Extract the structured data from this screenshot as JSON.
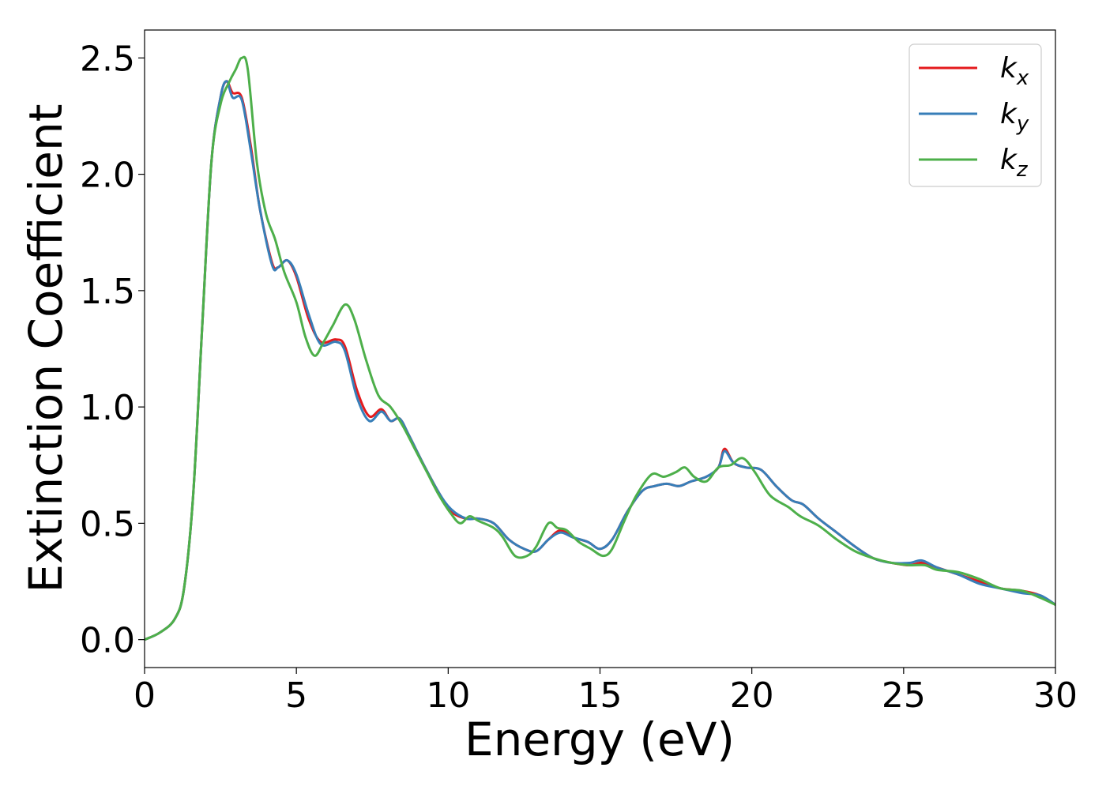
{
  "chart_data": {
    "type": "line",
    "title": "",
    "xlabel": "Energy (eV)",
    "ylabel": "Extinction Coefficient",
    "xlim": [
      0,
      30
    ],
    "ylim": [
      -0.12,
      2.62
    ],
    "xticks": [
      "0",
      "5",
      "10",
      "15",
      "20",
      "25",
      "30"
    ],
    "yticks": [
      "0.0",
      "0.5",
      "1.0",
      "1.5",
      "2.0",
      "2.5"
    ],
    "grid": false,
    "legend_position": "top-right",
    "series": [
      {
        "name": "k",
        "subscript": "x",
        "color": "#e41a1c",
        "points": [
          [
            0,
            0
          ],
          [
            0.5,
            0.03
          ],
          [
            1.0,
            0.09
          ],
          [
            1.3,
            0.22
          ],
          [
            1.6,
            0.62
          ],
          [
            1.9,
            1.35
          ],
          [
            2.2,
            2.05
          ],
          [
            2.5,
            2.33
          ],
          [
            2.7,
            2.4
          ],
          [
            2.9,
            2.35
          ],
          [
            3.2,
            2.33
          ],
          [
            3.5,
            2.12
          ],
          [
            3.8,
            1.85
          ],
          [
            4.2,
            1.62
          ],
          [
            4.4,
            1.6
          ],
          [
            4.7,
            1.63
          ],
          [
            5.0,
            1.56
          ],
          [
            5.4,
            1.38
          ],
          [
            5.8,
            1.28
          ],
          [
            6.3,
            1.29
          ],
          [
            6.6,
            1.26
          ],
          [
            7.0,
            1.07
          ],
          [
            7.4,
            0.96
          ],
          [
            7.8,
            0.99
          ],
          [
            8.1,
            0.94
          ],
          [
            8.4,
            0.95
          ],
          [
            8.7,
            0.88
          ],
          [
            9.2,
            0.75
          ],
          [
            9.7,
            0.63
          ],
          [
            10.1,
            0.55
          ],
          [
            10.6,
            0.52
          ],
          [
            11.0,
            0.52
          ],
          [
            11.5,
            0.5
          ],
          [
            12.0,
            0.43
          ],
          [
            12.5,
            0.39
          ],
          [
            12.9,
            0.38
          ],
          [
            13.3,
            0.43
          ],
          [
            13.7,
            0.47
          ],
          [
            14.1,
            0.44
          ],
          [
            14.6,
            0.42
          ],
          [
            15.0,
            0.39
          ],
          [
            15.4,
            0.43
          ],
          [
            15.9,
            0.55
          ],
          [
            16.4,
            0.64
          ],
          [
            16.8,
            0.66
          ],
          [
            17.2,
            0.67
          ],
          [
            17.6,
            0.66
          ],
          [
            18.0,
            0.68
          ],
          [
            18.5,
            0.7
          ],
          [
            18.9,
            0.74
          ],
          [
            19.1,
            0.82
          ],
          [
            19.4,
            0.76
          ],
          [
            19.8,
            0.74
          ],
          [
            20.3,
            0.73
          ],
          [
            20.8,
            0.66
          ],
          [
            21.3,
            0.6
          ],
          [
            21.7,
            0.58
          ],
          [
            22.2,
            0.52
          ],
          [
            22.8,
            0.46
          ],
          [
            23.4,
            0.4
          ],
          [
            24.0,
            0.35
          ],
          [
            24.6,
            0.33
          ],
          [
            25.2,
            0.32
          ],
          [
            25.6,
            0.33
          ],
          [
            26.1,
            0.31
          ],
          [
            26.8,
            0.28
          ],
          [
            27.5,
            0.25
          ],
          [
            28.2,
            0.22
          ],
          [
            28.9,
            0.21
          ],
          [
            29.5,
            0.19
          ],
          [
            30.0,
            0.15
          ]
        ]
      },
      {
        "name": "k",
        "subscript": "y",
        "color": "#377eb8",
        "points": [
          [
            0,
            0
          ],
          [
            0.5,
            0.03
          ],
          [
            1.0,
            0.09
          ],
          [
            1.3,
            0.22
          ],
          [
            1.6,
            0.62
          ],
          [
            1.9,
            1.35
          ],
          [
            2.2,
            2.05
          ],
          [
            2.5,
            2.33
          ],
          [
            2.7,
            2.4
          ],
          [
            2.9,
            2.33
          ],
          [
            3.2,
            2.32
          ],
          [
            3.5,
            2.1
          ],
          [
            3.8,
            1.85
          ],
          [
            4.2,
            1.61
          ],
          [
            4.4,
            1.6
          ],
          [
            4.7,
            1.63
          ],
          [
            5.0,
            1.57
          ],
          [
            5.4,
            1.4
          ],
          [
            5.8,
            1.27
          ],
          [
            6.3,
            1.28
          ],
          [
            6.6,
            1.24
          ],
          [
            7.0,
            1.04
          ],
          [
            7.4,
            0.94
          ],
          [
            7.8,
            0.98
          ],
          [
            8.1,
            0.94
          ],
          [
            8.4,
            0.95
          ],
          [
            8.7,
            0.88
          ],
          [
            9.2,
            0.75
          ],
          [
            9.7,
            0.63
          ],
          [
            10.1,
            0.56
          ],
          [
            10.6,
            0.52
          ],
          [
            11.0,
            0.52
          ],
          [
            11.5,
            0.5
          ],
          [
            12.0,
            0.43
          ],
          [
            12.5,
            0.39
          ],
          [
            12.9,
            0.38
          ],
          [
            13.3,
            0.43
          ],
          [
            13.7,
            0.46
          ],
          [
            14.1,
            0.44
          ],
          [
            14.6,
            0.42
          ],
          [
            15.0,
            0.39
          ],
          [
            15.4,
            0.43
          ],
          [
            15.9,
            0.55
          ],
          [
            16.4,
            0.64
          ],
          [
            16.8,
            0.66
          ],
          [
            17.2,
            0.67
          ],
          [
            17.6,
            0.66
          ],
          [
            18.0,
            0.68
          ],
          [
            18.5,
            0.7
          ],
          [
            18.9,
            0.74
          ],
          [
            19.1,
            0.81
          ],
          [
            19.4,
            0.76
          ],
          [
            19.8,
            0.74
          ],
          [
            20.3,
            0.73
          ],
          [
            20.8,
            0.66
          ],
          [
            21.3,
            0.6
          ],
          [
            21.7,
            0.58
          ],
          [
            22.2,
            0.52
          ],
          [
            22.8,
            0.46
          ],
          [
            23.4,
            0.4
          ],
          [
            24.0,
            0.35
          ],
          [
            24.6,
            0.33
          ],
          [
            25.2,
            0.33
          ],
          [
            25.6,
            0.34
          ],
          [
            26.1,
            0.31
          ],
          [
            26.8,
            0.28
          ],
          [
            27.5,
            0.24
          ],
          [
            28.2,
            0.22
          ],
          [
            28.9,
            0.2
          ],
          [
            29.5,
            0.19
          ],
          [
            30.0,
            0.15
          ]
        ]
      },
      {
        "name": "k",
        "subscript": "z",
        "color": "#4daf4a",
        "points": [
          [
            0,
            0
          ],
          [
            0.5,
            0.03
          ],
          [
            1.0,
            0.09
          ],
          [
            1.3,
            0.22
          ],
          [
            1.6,
            0.62
          ],
          [
            1.9,
            1.35
          ],
          [
            2.2,
            2.05
          ],
          [
            2.5,
            2.3
          ],
          [
            2.8,
            2.4
          ],
          [
            3.0,
            2.45
          ],
          [
            3.2,
            2.5
          ],
          [
            3.4,
            2.45
          ],
          [
            3.7,
            2.05
          ],
          [
            4.0,
            1.83
          ],
          [
            4.3,
            1.72
          ],
          [
            4.6,
            1.58
          ],
          [
            5.0,
            1.45
          ],
          [
            5.3,
            1.3
          ],
          [
            5.6,
            1.22
          ],
          [
            5.9,
            1.28
          ],
          [
            6.2,
            1.35
          ],
          [
            6.6,
            1.44
          ],
          [
            6.9,
            1.38
          ],
          [
            7.3,
            1.2
          ],
          [
            7.7,
            1.05
          ],
          [
            8.1,
            1.0
          ],
          [
            8.5,
            0.92
          ],
          [
            8.9,
            0.82
          ],
          [
            9.3,
            0.72
          ],
          [
            9.7,
            0.62
          ],
          [
            10.1,
            0.54
          ],
          [
            10.4,
            0.5
          ],
          [
            10.7,
            0.53
          ],
          [
            11.0,
            0.51
          ],
          [
            11.5,
            0.48
          ],
          [
            11.8,
            0.44
          ],
          [
            12.2,
            0.36
          ],
          [
            12.6,
            0.36
          ],
          [
            12.9,
            0.4
          ],
          [
            13.3,
            0.5
          ],
          [
            13.6,
            0.48
          ],
          [
            13.9,
            0.47
          ],
          [
            14.3,
            0.42
          ],
          [
            14.7,
            0.39
          ],
          [
            15.1,
            0.36
          ],
          [
            15.4,
            0.39
          ],
          [
            15.8,
            0.51
          ],
          [
            16.2,
            0.62
          ],
          [
            16.7,
            0.71
          ],
          [
            17.1,
            0.7
          ],
          [
            17.5,
            0.72
          ],
          [
            17.8,
            0.74
          ],
          [
            18.1,
            0.7
          ],
          [
            18.5,
            0.68
          ],
          [
            18.9,
            0.74
          ],
          [
            19.3,
            0.75
          ],
          [
            19.7,
            0.78
          ],
          [
            20.1,
            0.72
          ],
          [
            20.6,
            0.62
          ],
          [
            21.2,
            0.57
          ],
          [
            21.6,
            0.53
          ],
          [
            22.2,
            0.49
          ],
          [
            22.8,
            0.43
          ],
          [
            23.4,
            0.38
          ],
          [
            24.0,
            0.35
          ],
          [
            24.6,
            0.33
          ],
          [
            25.2,
            0.32
          ],
          [
            25.7,
            0.32
          ],
          [
            26.1,
            0.3
          ],
          [
            26.8,
            0.29
          ],
          [
            27.5,
            0.26
          ],
          [
            28.2,
            0.22
          ],
          [
            28.9,
            0.21
          ],
          [
            29.5,
            0.18
          ],
          [
            30.0,
            0.15
          ]
        ]
      }
    ]
  }
}
